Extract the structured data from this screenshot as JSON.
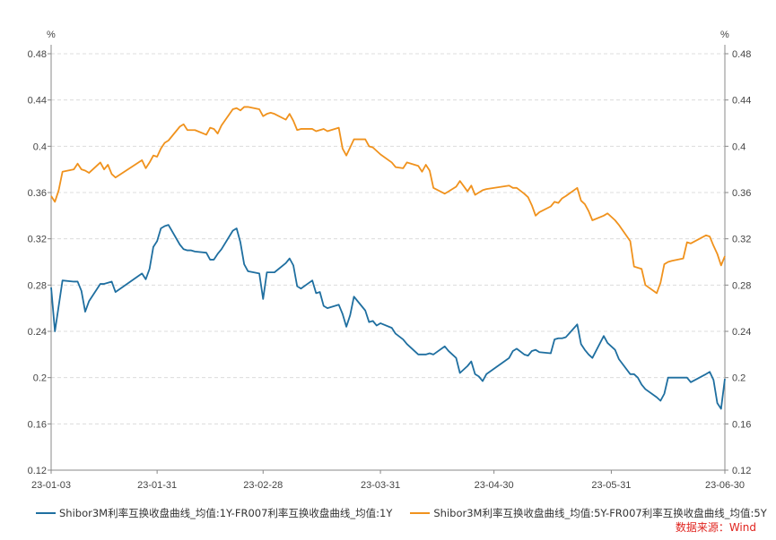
{
  "chart_data": {
    "type": "line",
    "unit_left": "%",
    "unit_right": "%",
    "x_ticks": [
      "23-01-03",
      "23-01-31",
      "23-02-28",
      "23-03-31",
      "23-04-30",
      "23-05-31",
      "23-06-30"
    ],
    "y_ticks": [
      "0.12",
      "0.16",
      "0.2",
      "0.24",
      "0.28",
      "0.32",
      "0.36",
      "0.4",
      "0.44",
      "0.48"
    ],
    "ylim": [
      0.12,
      0.48
    ],
    "xlim": [
      "2023-01-03",
      "2023-06-30"
    ],
    "grid": true,
    "legend_position": "bottom-left",
    "series": [
      {
        "name": "Shibor3M利率互换收盘曲线_均值:1Y-FR007利率互换收盘曲线_均值:1Y",
        "color": "#1f6fa0",
        "axis": "left",
        "points": [
          [
            "2023-01-03",
            0.278
          ],
          [
            "2023-01-04",
            0.24
          ],
          [
            "2023-01-05",
            0.262
          ],
          [
            "2023-01-06",
            0.284
          ],
          [
            "2023-01-09",
            0.283
          ],
          [
            "2023-01-10",
            0.283
          ],
          [
            "2023-01-11",
            0.275
          ],
          [
            "2023-01-12",
            0.257
          ],
          [
            "2023-01-13",
            0.266
          ],
          [
            "2023-01-16",
            0.281
          ],
          [
            "2023-01-17",
            0.281
          ],
          [
            "2023-01-18",
            0.282
          ],
          [
            "2023-01-19",
            0.283
          ],
          [
            "2023-01-20",
            0.274
          ],
          [
            "2023-01-27",
            0.29
          ],
          [
            "2023-01-28",
            0.285
          ],
          [
            "2023-01-29",
            0.294
          ],
          [
            "2023-01-30",
            0.313
          ],
          [
            "2023-01-31",
            0.318
          ],
          [
            "2023-02-01",
            0.329
          ],
          [
            "2023-02-02",
            0.331
          ],
          [
            "2023-02-03",
            0.332
          ],
          [
            "2023-02-06",
            0.315
          ],
          [
            "2023-02-07",
            0.311
          ],
          [
            "2023-02-08",
            0.31
          ],
          [
            "2023-02-09",
            0.31
          ],
          [
            "2023-02-10",
            0.309
          ],
          [
            "2023-02-13",
            0.308
          ],
          [
            "2023-02-14",
            0.302
          ],
          [
            "2023-02-15",
            0.302
          ],
          [
            "2023-02-16",
            0.307
          ],
          [
            "2023-02-17",
            0.311
          ],
          [
            "2023-02-20",
            0.327
          ],
          [
            "2023-02-21",
            0.329
          ],
          [
            "2023-02-22",
            0.317
          ],
          [
            "2023-02-23",
            0.298
          ],
          [
            "2023-02-24",
            0.292
          ],
          [
            "2023-02-27",
            0.29
          ],
          [
            "2023-02-28",
            0.268
          ],
          [
            "2023-03-01",
            0.291
          ],
          [
            "2023-03-02",
            0.291
          ],
          [
            "2023-03-03",
            0.291
          ],
          [
            "2023-03-06",
            0.299
          ],
          [
            "2023-03-07",
            0.303
          ],
          [
            "2023-03-08",
            0.297
          ],
          [
            "2023-03-09",
            0.279
          ],
          [
            "2023-03-10",
            0.277
          ],
          [
            "2023-03-13",
            0.284
          ],
          [
            "2023-03-14",
            0.273
          ],
          [
            "2023-03-15",
            0.274
          ],
          [
            "2023-03-16",
            0.262
          ],
          [
            "2023-03-17",
            0.26
          ],
          [
            "2023-03-20",
            0.263
          ],
          [
            "2023-03-21",
            0.255
          ],
          [
            "2023-03-22",
            0.244
          ],
          [
            "2023-03-23",
            0.254
          ],
          [
            "2023-03-24",
            0.27
          ],
          [
            "2023-03-27",
            0.258
          ],
          [
            "2023-03-28",
            0.248
          ],
          [
            "2023-03-29",
            0.249
          ],
          [
            "2023-03-30",
            0.245
          ],
          [
            "2023-03-31",
            0.247
          ],
          [
            "2023-04-03",
            0.243
          ],
          [
            "2023-04-04",
            0.238
          ],
          [
            "2023-04-06",
            0.233
          ],
          [
            "2023-04-07",
            0.229
          ],
          [
            "2023-04-10",
            0.22
          ],
          [
            "2023-04-11",
            0.22
          ],
          [
            "2023-04-12",
            0.22
          ],
          [
            "2023-04-13",
            0.221
          ],
          [
            "2023-04-14",
            0.22
          ],
          [
            "2023-04-17",
            0.227
          ],
          [
            "2023-04-18",
            0.223
          ],
          [
            "2023-04-19",
            0.22
          ],
          [
            "2023-04-20",
            0.217
          ],
          [
            "2023-04-21",
            0.204
          ],
          [
            "2023-04-23",
            0.21
          ],
          [
            "2023-04-24",
            0.214
          ],
          [
            "2023-04-25",
            0.203
          ],
          [
            "2023-04-26",
            0.201
          ],
          [
            "2023-04-27",
            0.197
          ],
          [
            "2023-04-28",
            0.203
          ],
          [
            "2023-05-04",
            0.217
          ],
          [
            "2023-05-05",
            0.223
          ],
          [
            "2023-05-06",
            0.225
          ],
          [
            "2023-05-08",
            0.22
          ],
          [
            "2023-05-09",
            0.219
          ],
          [
            "2023-05-10",
            0.223
          ],
          [
            "2023-05-11",
            0.224
          ],
          [
            "2023-05-12",
            0.222
          ],
          [
            "2023-05-15",
            0.221
          ],
          [
            "2023-05-16",
            0.233
          ],
          [
            "2023-05-17",
            0.234
          ],
          [
            "2023-05-18",
            0.234
          ],
          [
            "2023-05-19",
            0.235
          ],
          [
            "2023-05-22",
            0.246
          ],
          [
            "2023-05-23",
            0.229
          ],
          [
            "2023-05-24",
            0.224
          ],
          [
            "2023-05-25",
            0.22
          ],
          [
            "2023-05-26",
            0.217
          ],
          [
            "2023-05-29",
            0.236
          ],
          [
            "2023-05-30",
            0.23
          ],
          [
            "2023-05-31",
            0.227
          ],
          [
            "2023-06-01",
            0.224
          ],
          [
            "2023-06-02",
            0.216
          ],
          [
            "2023-06-05",
            0.203
          ],
          [
            "2023-06-06",
            0.203
          ],
          [
            "2023-06-07",
            0.2
          ],
          [
            "2023-06-08",
            0.194
          ],
          [
            "2023-06-09",
            0.19
          ],
          [
            "2023-06-12",
            0.183
          ],
          [
            "2023-06-13",
            0.18
          ],
          [
            "2023-06-14",
            0.186
          ],
          [
            "2023-06-15",
            0.2
          ],
          [
            "2023-06-16",
            0.2
          ],
          [
            "2023-06-19",
            0.2
          ],
          [
            "2023-06-20",
            0.2
          ],
          [
            "2023-06-21",
            0.196
          ],
          [
            "2023-06-25",
            0.203
          ],
          [
            "2023-06-26",
            0.205
          ],
          [
            "2023-06-27",
            0.198
          ],
          [
            "2023-06-28",
            0.178
          ],
          [
            "2023-06-29",
            0.173
          ],
          [
            "2023-06-30",
            0.199
          ]
        ]
      },
      {
        "name": "Shibor3M利率互换收盘曲线_均值:5Y-FR007利率互换收盘曲线_均值:5Y",
        "color": "#f0921d",
        "axis": "right",
        "points": [
          [
            "2023-01-03",
            0.357
          ],
          [
            "2023-01-04",
            0.352
          ],
          [
            "2023-01-05",
            0.362
          ],
          [
            "2023-01-06",
            0.378
          ],
          [
            "2023-01-09",
            0.38
          ],
          [
            "2023-01-10",
            0.385
          ],
          [
            "2023-01-11",
            0.38
          ],
          [
            "2023-01-12",
            0.379
          ],
          [
            "2023-01-13",
            0.377
          ],
          [
            "2023-01-16",
            0.386
          ],
          [
            "2023-01-17",
            0.38
          ],
          [
            "2023-01-18",
            0.384
          ],
          [
            "2023-01-19",
            0.376
          ],
          [
            "2023-01-20",
            0.373
          ],
          [
            "2023-01-27",
            0.388
          ],
          [
            "2023-01-28",
            0.381
          ],
          [
            "2023-01-29",
            0.386
          ],
          [
            "2023-01-30",
            0.392
          ],
          [
            "2023-01-31",
            0.391
          ],
          [
            "2023-02-01",
            0.398
          ],
          [
            "2023-02-02",
            0.403
          ],
          [
            "2023-02-03",
            0.405
          ],
          [
            "2023-02-06",
            0.417
          ],
          [
            "2023-02-07",
            0.419
          ],
          [
            "2023-02-08",
            0.414
          ],
          [
            "2023-02-09",
            0.414
          ],
          [
            "2023-02-10",
            0.414
          ],
          [
            "2023-02-13",
            0.41
          ],
          [
            "2023-02-14",
            0.416
          ],
          [
            "2023-02-15",
            0.415
          ],
          [
            "2023-02-16",
            0.411
          ],
          [
            "2023-02-17",
            0.418
          ],
          [
            "2023-02-20",
            0.432
          ],
          [
            "2023-02-21",
            0.433
          ],
          [
            "2023-02-22",
            0.431
          ],
          [
            "2023-02-23",
            0.434
          ],
          [
            "2023-02-24",
            0.434
          ],
          [
            "2023-02-27",
            0.432
          ],
          [
            "2023-02-28",
            0.426
          ],
          [
            "2023-03-01",
            0.428
          ],
          [
            "2023-03-02",
            0.429
          ],
          [
            "2023-03-03",
            0.428
          ],
          [
            "2023-03-06",
            0.423
          ],
          [
            "2023-03-07",
            0.428
          ],
          [
            "2023-03-08",
            0.422
          ],
          [
            "2023-03-09",
            0.414
          ],
          [
            "2023-03-10",
            0.415
          ],
          [
            "2023-03-13",
            0.415
          ],
          [
            "2023-03-14",
            0.413
          ],
          [
            "2023-03-15",
            0.414
          ],
          [
            "2023-03-16",
            0.415
          ],
          [
            "2023-03-17",
            0.413
          ],
          [
            "2023-03-20",
            0.416
          ],
          [
            "2023-03-21",
            0.398
          ],
          [
            "2023-03-22",
            0.392
          ],
          [
            "2023-03-23",
            0.399
          ],
          [
            "2023-03-24",
            0.406
          ],
          [
            "2023-03-27",
            0.406
          ],
          [
            "2023-03-28",
            0.4
          ],
          [
            "2023-03-29",
            0.399
          ],
          [
            "2023-03-30",
            0.396
          ],
          [
            "2023-03-31",
            0.393
          ],
          [
            "2023-04-03",
            0.386
          ],
          [
            "2023-04-04",
            0.382
          ],
          [
            "2023-04-06",
            0.381
          ],
          [
            "2023-04-07",
            0.386
          ],
          [
            "2023-04-10",
            0.383
          ],
          [
            "2023-04-11",
            0.378
          ],
          [
            "2023-04-12",
            0.384
          ],
          [
            "2023-04-13",
            0.379
          ],
          [
            "2023-04-14",
            0.364
          ],
          [
            "2023-04-17",
            0.359
          ],
          [
            "2023-04-18",
            0.361
          ],
          [
            "2023-04-19",
            0.363
          ],
          [
            "2023-04-20",
            0.365
          ],
          [
            "2023-04-21",
            0.37
          ],
          [
            "2023-04-23",
            0.361
          ],
          [
            "2023-04-24",
            0.366
          ],
          [
            "2023-04-25",
            0.358
          ],
          [
            "2023-04-26",
            0.36
          ],
          [
            "2023-04-27",
            0.362
          ],
          [
            "2023-04-28",
            0.363
          ],
          [
            "2023-05-04",
            0.366
          ],
          [
            "2023-05-05",
            0.364
          ],
          [
            "2023-05-06",
            0.364
          ],
          [
            "2023-05-08",
            0.359
          ],
          [
            "2023-05-09",
            0.356
          ],
          [
            "2023-05-10",
            0.349
          ],
          [
            "2023-05-11",
            0.34
          ],
          [
            "2023-05-12",
            0.343
          ],
          [
            "2023-05-15",
            0.348
          ],
          [
            "2023-05-16",
            0.352
          ],
          [
            "2023-05-17",
            0.351
          ],
          [
            "2023-05-18",
            0.355
          ],
          [
            "2023-05-19",
            0.357
          ],
          [
            "2023-05-22",
            0.364
          ],
          [
            "2023-05-23",
            0.353
          ],
          [
            "2023-05-24",
            0.35
          ],
          [
            "2023-05-25",
            0.344
          ],
          [
            "2023-05-26",
            0.336
          ],
          [
            "2023-05-29",
            0.34
          ],
          [
            "2023-05-30",
            0.342
          ],
          [
            "2023-05-31",
            0.339
          ],
          [
            "2023-06-01",
            0.336
          ],
          [
            "2023-06-02",
            0.332
          ],
          [
            "2023-06-05",
            0.318
          ],
          [
            "2023-06-06",
            0.296
          ],
          [
            "2023-06-07",
            0.295
          ],
          [
            "2023-06-08",
            0.294
          ],
          [
            "2023-06-09",
            0.28
          ],
          [
            "2023-06-12",
            0.273
          ],
          [
            "2023-06-13",
            0.282
          ],
          [
            "2023-06-14",
            0.298
          ],
          [
            "2023-06-15",
            0.3
          ],
          [
            "2023-06-16",
            0.301
          ],
          [
            "2023-06-19",
            0.303
          ],
          [
            "2023-06-20",
            0.317
          ],
          [
            "2023-06-21",
            0.316
          ],
          [
            "2023-06-25",
            0.323
          ],
          [
            "2023-06-26",
            0.322
          ],
          [
            "2023-06-27",
            0.314
          ],
          [
            "2023-06-28",
            0.307
          ],
          [
            "2023-06-29",
            0.297
          ],
          [
            "2023-06-30",
            0.305
          ]
        ]
      }
    ]
  },
  "source_label": "数据来源：Wind",
  "source_color": "#e0241f"
}
